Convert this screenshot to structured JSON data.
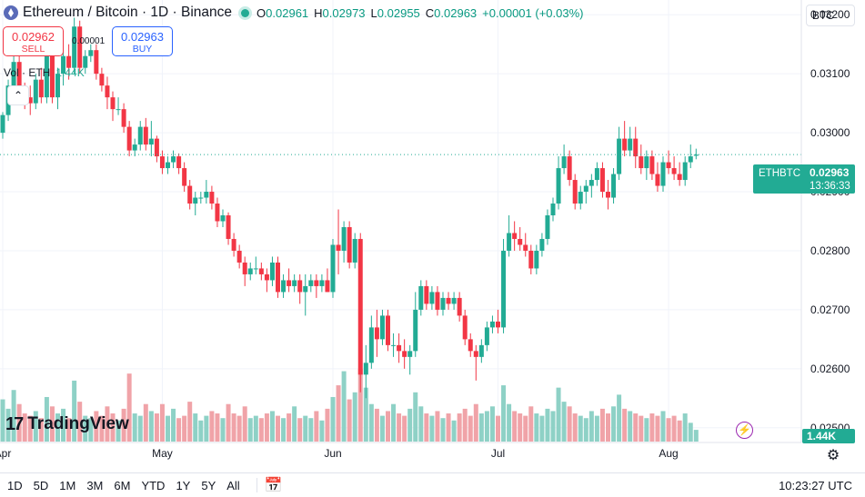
{
  "legend": {
    "title": "Ethereum / Bitcoin · 1D · Binance",
    "open_label": "O",
    "open": "0.02961",
    "high_label": "H",
    "high": "0.02973",
    "low_label": "L",
    "low": "0.02955",
    "close_label": "C",
    "close": "0.02963",
    "change": "+0.00001 (+0.03%)"
  },
  "trade": {
    "sell_price": "0.02962",
    "sell_label": "SELL",
    "buy_price": "0.02963",
    "buy_label": "BUY",
    "spread": "0.00001"
  },
  "volume_legend": {
    "label": "Vol · ETH",
    "value": "1.44K"
  },
  "currency": "BTC",
  "logo_text": "TradingView",
  "price_tag": {
    "symbol": "ETHBTC",
    "price": "0.02963",
    "countdown": "13:36:33"
  },
  "volume_tag": "1.44K",
  "timeframes": [
    "1D",
    "5D",
    "1M",
    "3M",
    "6M",
    "YTD",
    "1Y",
    "5Y",
    "All"
  ],
  "clock": "10:23:27 UTC",
  "colors": {
    "up": "#22ab94",
    "down": "#f23645",
    "vol_up": "#8ed1c6",
    "vol_down": "#f0a3a8",
    "grid": "#f0f3fa",
    "axis_text": "#131722"
  },
  "icons": [
    "ethereum-icon",
    "collapse-icon",
    "bolt-icon",
    "gear-icon",
    "calendar-range-icon"
  ],
  "chart_data": {
    "type": "candlestick",
    "title": "Ethereum / Bitcoin · 1D · Binance",
    "ylim": [
      0.02475,
      0.03225
    ],
    "y_ticks": [
      "0.03200",
      "0.03100",
      "0.03000",
      "0.02900",
      "0.02800",
      "0.02700",
      "0.02600",
      "0.02500"
    ],
    "x_ticks": [
      {
        "label": "Apr",
        "index": 0
      },
      {
        "label": "May",
        "index": 29
      },
      {
        "label": "Jun",
        "index": 60
      },
      {
        "label": "Jul",
        "index": 90
      },
      {
        "label": "Aug",
        "index": 121
      }
    ],
    "volume_max": 3.1,
    "candles": [
      [
        0.03,
        0.03035,
        0.0299,
        0.0303,
        1.8
      ],
      [
        0.0303,
        0.0309,
        0.0302,
        0.0308,
        1.4
      ],
      [
        0.0308,
        0.0315,
        0.0307,
        0.0312,
        2.2
      ],
      [
        0.0312,
        0.0314,
        0.0306,
        0.0307,
        1.6
      ],
      [
        0.0307,
        0.03085,
        0.0304,
        0.0306,
        1.2
      ],
      [
        0.0306,
        0.0308,
        0.0303,
        0.0305,
        1.1
      ],
      [
        0.0305,
        0.031,
        0.0304,
        0.0309,
        1.3
      ],
      [
        0.0309,
        0.0311,
        0.0305,
        0.0306,
        1.0
      ],
      [
        0.0306,
        0.0315,
        0.0305,
        0.0313,
        1.9
      ],
      [
        0.0313,
        0.0314,
        0.0305,
        0.0306,
        1.5
      ],
      [
        0.0306,
        0.0311,
        0.0304,
        0.031,
        1.2
      ],
      [
        0.031,
        0.0314,
        0.0308,
        0.0313,
        1.4
      ],
      [
        0.0313,
        0.0315,
        0.0309,
        0.0311,
        1.0
      ],
      [
        0.0311,
        0.03195,
        0.031,
        0.0318,
        2.6
      ],
      [
        0.0318,
        0.0319,
        0.031,
        0.0311,
        1.7
      ],
      [
        0.0311,
        0.0314,
        0.031,
        0.0313,
        1.1
      ],
      [
        0.0313,
        0.0315,
        0.0312,
        0.0314,
        1.0
      ],
      [
        0.0314,
        0.0315,
        0.0309,
        0.031,
        1.3
      ],
      [
        0.031,
        0.0311,
        0.0307,
        0.0308,
        1.1
      ],
      [
        0.0308,
        0.03095,
        0.0304,
        0.0306,
        1.5
      ],
      [
        0.0306,
        0.0307,
        0.0302,
        0.0304,
        1.2
      ],
      [
        0.0304,
        0.0306,
        0.0303,
        0.0304,
        0.9
      ],
      [
        0.0304,
        0.0305,
        0.03,
        0.0301,
        1.4
      ],
      [
        0.0301,
        0.0302,
        0.0296,
        0.0297,
        2.9
      ],
      [
        0.0297,
        0.0299,
        0.0296,
        0.0298,
        1.2
      ],
      [
        0.0298,
        0.0302,
        0.0297,
        0.0301,
        1.1
      ],
      [
        0.0301,
        0.03025,
        0.0297,
        0.0298,
        1.6
      ],
      [
        0.0298,
        0.0302,
        0.0296,
        0.0299,
        1.3
      ],
      [
        0.0299,
        0.02995,
        0.0295,
        0.0296,
        1.2
      ],
      [
        0.0296,
        0.0297,
        0.0293,
        0.0294,
        1.6
      ],
      [
        0.0294,
        0.0296,
        0.0293,
        0.0295,
        1.1
      ],
      [
        0.0295,
        0.0297,
        0.0294,
        0.0296,
        1.4
      ],
      [
        0.0296,
        0.02965,
        0.0293,
        0.0294,
        1.0
      ],
      [
        0.0294,
        0.0295,
        0.029,
        0.0291,
        1.1
      ],
      [
        0.0291,
        0.0292,
        0.0287,
        0.0288,
        1.7
      ],
      [
        0.0288,
        0.029,
        0.0286,
        0.0289,
        1.2
      ],
      [
        0.0289,
        0.029,
        0.0288,
        0.0289,
        0.9
      ],
      [
        0.0289,
        0.0292,
        0.0288,
        0.029,
        1.1
      ],
      [
        0.029,
        0.0291,
        0.0287,
        0.0288,
        1.3
      ],
      [
        0.0288,
        0.0289,
        0.0284,
        0.0285,
        1.2
      ],
      [
        0.0285,
        0.0287,
        0.0284,
        0.0286,
        1.0
      ],
      [
        0.0286,
        0.02865,
        0.0281,
        0.0282,
        1.6
      ],
      [
        0.0282,
        0.0283,
        0.0279,
        0.028,
        1.2
      ],
      [
        0.028,
        0.0281,
        0.0277,
        0.0278,
        1.1
      ],
      [
        0.0278,
        0.0279,
        0.0274,
        0.0276,
        1.5
      ],
      [
        0.0276,
        0.0278,
        0.0275,
        0.0277,
        1.0
      ],
      [
        0.0277,
        0.0279,
        0.0276,
        0.0277,
        1.1
      ],
      [
        0.0277,
        0.0278,
        0.0275,
        0.0276,
        1.0
      ],
      [
        0.0276,
        0.0277,
        0.0273,
        0.0275,
        1.2
      ],
      [
        0.0275,
        0.0279,
        0.0274,
        0.0278,
        1.3
      ],
      [
        0.0278,
        0.0279,
        0.0272,
        0.0273,
        1.1
      ],
      [
        0.0273,
        0.0276,
        0.0272,
        0.0275,
        1.0
      ],
      [
        0.0275,
        0.0277,
        0.0273,
        0.0274,
        1.2
      ],
      [
        0.0274,
        0.0276,
        0.0273,
        0.0275,
        1.5
      ],
      [
        0.0275,
        0.0276,
        0.0271,
        0.0273,
        1.0
      ],
      [
        0.0273,
        0.0276,
        0.0269,
        0.0274,
        1.1
      ],
      [
        0.0274,
        0.0276,
        0.0273,
        0.0275,
        1.0
      ],
      [
        0.0275,
        0.0276,
        0.0272,
        0.0274,
        1.3
      ],
      [
        0.0274,
        0.0276,
        0.0273,
        0.0275,
        0.9
      ],
      [
        0.0275,
        0.0277,
        0.0273,
        0.0273,
        1.4
      ],
      [
        0.0273,
        0.0282,
        0.0272,
        0.0281,
        1.9
      ],
      [
        0.0281,
        0.0287,
        0.0276,
        0.028,
        2.4
      ],
      [
        0.028,
        0.0285,
        0.0278,
        0.0284,
        3.0
      ],
      [
        0.0284,
        0.0285,
        0.0277,
        0.0278,
        1.8
      ],
      [
        0.0278,
        0.0283,
        0.0277,
        0.0282,
        2.1
      ],
      [
        0.0282,
        0.0283,
        0.0256,
        0.0259,
        3.1
      ],
      [
        0.0259,
        0.0264,
        0.0255,
        0.0261,
        2.3
      ],
      [
        0.0261,
        0.0269,
        0.026,
        0.0267,
        1.6
      ],
      [
        0.0267,
        0.027,
        0.0262,
        0.0265,
        1.4
      ],
      [
        0.0265,
        0.027,
        0.0264,
        0.0269,
        1.1
      ],
      [
        0.0269,
        0.027,
        0.0263,
        0.0264,
        1.3
      ],
      [
        0.0264,
        0.0266,
        0.0262,
        0.0264,
        1.6
      ],
      [
        0.0264,
        0.0266,
        0.0261,
        0.0263,
        1.2
      ],
      [
        0.0263,
        0.0265,
        0.026,
        0.0262,
        1.1
      ],
      [
        0.0262,
        0.0264,
        0.0259,
        0.0263,
        1.4
      ],
      [
        0.0263,
        0.0273,
        0.0262,
        0.027,
        2.1
      ],
      [
        0.027,
        0.0275,
        0.0269,
        0.0274,
        1.5
      ],
      [
        0.0274,
        0.0275,
        0.027,
        0.0271,
        1.2
      ],
      [
        0.0271,
        0.0274,
        0.027,
        0.0273,
        1.1
      ],
      [
        0.0273,
        0.0274,
        0.0269,
        0.027,
        1.3
      ],
      [
        0.027,
        0.0273,
        0.0269,
        0.0272,
        1.0
      ],
      [
        0.0272,
        0.0273,
        0.027,
        0.0271,
        1.2
      ],
      [
        0.0271,
        0.0273,
        0.027,
        0.0272,
        0.9
      ],
      [
        0.0272,
        0.0273,
        0.0268,
        0.0269,
        1.2
      ],
      [
        0.0269,
        0.027,
        0.0264,
        0.0265,
        1.4
      ],
      [
        0.0265,
        0.0266,
        0.0262,
        0.0263,
        1.1
      ],
      [
        0.0263,
        0.0264,
        0.0258,
        0.0262,
        1.6
      ],
      [
        0.0262,
        0.0265,
        0.0261,
        0.0264,
        1.2
      ],
      [
        0.0264,
        0.0268,
        0.0263,
        0.0267,
        1.3
      ],
      [
        0.0267,
        0.0269,
        0.0266,
        0.0268,
        1.5
      ],
      [
        0.0268,
        0.027,
        0.0266,
        0.0267,
        1.1
      ],
      [
        0.0267,
        0.0282,
        0.0266,
        0.028,
        2.4
      ],
      [
        0.028,
        0.0286,
        0.0279,
        0.0283,
        1.6
      ],
      [
        0.0283,
        0.0285,
        0.028,
        0.0282,
        1.3
      ],
      [
        0.0282,
        0.0284,
        0.028,
        0.0281,
        1.2
      ],
      [
        0.0281,
        0.0283,
        0.0279,
        0.028,
        1.1
      ],
      [
        0.028,
        0.0281,
        0.0276,
        0.0277,
        1.5
      ],
      [
        0.0277,
        0.0281,
        0.0276,
        0.028,
        1.2
      ],
      [
        0.028,
        0.0283,
        0.0279,
        0.0282,
        1.1
      ],
      [
        0.0282,
        0.0287,
        0.0281,
        0.0286,
        1.4
      ],
      [
        0.0286,
        0.0289,
        0.0285,
        0.0288,
        1.3
      ],
      [
        0.0288,
        0.0296,
        0.0287,
        0.0294,
        2.3
      ],
      [
        0.0294,
        0.0298,
        0.0293,
        0.0296,
        1.7
      ],
      [
        0.0296,
        0.0297,
        0.0291,
        0.0292,
        1.5
      ],
      [
        0.0292,
        0.0293,
        0.0287,
        0.0288,
        1.2
      ],
      [
        0.0288,
        0.0291,
        0.0287,
        0.029,
        1.1
      ],
      [
        0.029,
        0.0292,
        0.0288,
        0.0291,
        1.0
      ],
      [
        0.0291,
        0.0293,
        0.0289,
        0.0292,
        1.3
      ],
      [
        0.0292,
        0.0295,
        0.0291,
        0.0294,
        1.1
      ],
      [
        0.0294,
        0.0295,
        0.0289,
        0.029,
        1.4
      ],
      [
        0.029,
        0.0292,
        0.0287,
        0.0289,
        1.2
      ],
      [
        0.0289,
        0.0294,
        0.0288,
        0.0293,
        1.5
      ],
      [
        0.0293,
        0.0301,
        0.0292,
        0.0299,
        2.0
      ],
      [
        0.0299,
        0.0302,
        0.0296,
        0.0297,
        1.4
      ],
      [
        0.0297,
        0.0301,
        0.0296,
        0.0299,
        1.3
      ],
      [
        0.0299,
        0.0301,
        0.0294,
        0.0296,
        1.2
      ],
      [
        0.0296,
        0.0298,
        0.0293,
        0.0294,
        1.1
      ],
      [
        0.0294,
        0.0297,
        0.0292,
        0.0296,
        1.0
      ],
      [
        0.0296,
        0.0297,
        0.0292,
        0.0293,
        1.2
      ],
      [
        0.0293,
        0.0295,
        0.029,
        0.0291,
        1.1
      ],
      [
        0.0291,
        0.0296,
        0.029,
        0.0295,
        1.3
      ],
      [
        0.0295,
        0.0297,
        0.0293,
        0.0294,
        1.0
      ],
      [
        0.0294,
        0.0296,
        0.0292,
        0.0293,
        1.1
      ],
      [
        0.0293,
        0.0295,
        0.0291,
        0.0292,
        0.9
      ],
      [
        0.0292,
        0.0296,
        0.0291,
        0.0295,
        1.2
      ],
      [
        0.0295,
        0.0298,
        0.0294,
        0.0296,
        0.8
      ],
      [
        0.02961,
        0.02973,
        0.02955,
        0.02963,
        0.5
      ]
    ]
  }
}
